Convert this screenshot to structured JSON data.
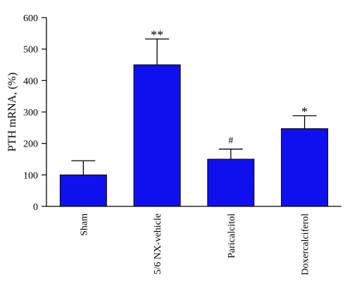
{
  "chart_data": {
    "type": "bar",
    "title": "",
    "xlabel": "",
    "ylabel": "PTH mRNA, (%)",
    "categories": [
      "Sham",
      "5/6 NX-vehicle",
      "Paricalcitol",
      "Doxercalciferol"
    ],
    "values": [
      100,
      450,
      150,
      247
    ],
    "error_upper": [
      145,
      532,
      182,
      288
    ],
    "annotations": [
      "",
      "**",
      "#",
      "*"
    ],
    "yticks": [
      "0",
      "100",
      "200",
      "300",
      "400",
      "500",
      "600"
    ],
    "ylim": [
      0,
      600
    ],
    "grid": false,
    "legend": "none",
    "bar_color": "#1010ee"
  }
}
